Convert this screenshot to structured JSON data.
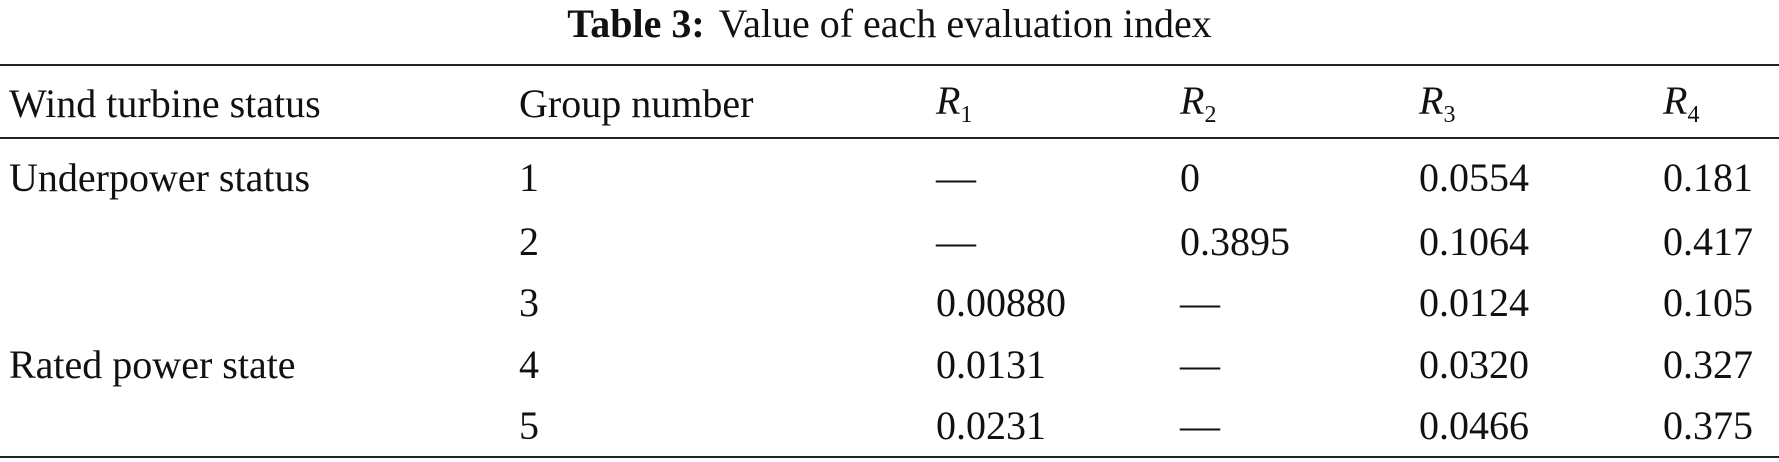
{
  "table": {
    "caption": {
      "label": "Table 3:",
      "text": "Value of each evaluation index"
    },
    "headers": [
      "Wind turbine status",
      "Group number",
      {
        "symbol": "R",
        "subscript": "1"
      },
      {
        "symbol": "R",
        "subscript": "2"
      },
      {
        "symbol": "R",
        "subscript": "3"
      },
      {
        "symbol": "R",
        "subscript": "4"
      }
    ],
    "rows": [
      [
        "Underpower status",
        "1",
        "—",
        "0",
        "0.0554",
        "0.181"
      ],
      [
        null,
        "2",
        "—",
        "0.3895",
        "0.1064",
        "0.417"
      ],
      [
        null,
        "3",
        "0.00880",
        "—",
        "0.0124",
        "0.105"
      ],
      [
        "Rated power state",
        "4",
        "0.0131",
        "—",
        "0.0320",
        "0.327"
      ],
      [
        null,
        "5",
        "0.0231",
        "—",
        "0.0466",
        "0.375"
      ]
    ]
  }
}
